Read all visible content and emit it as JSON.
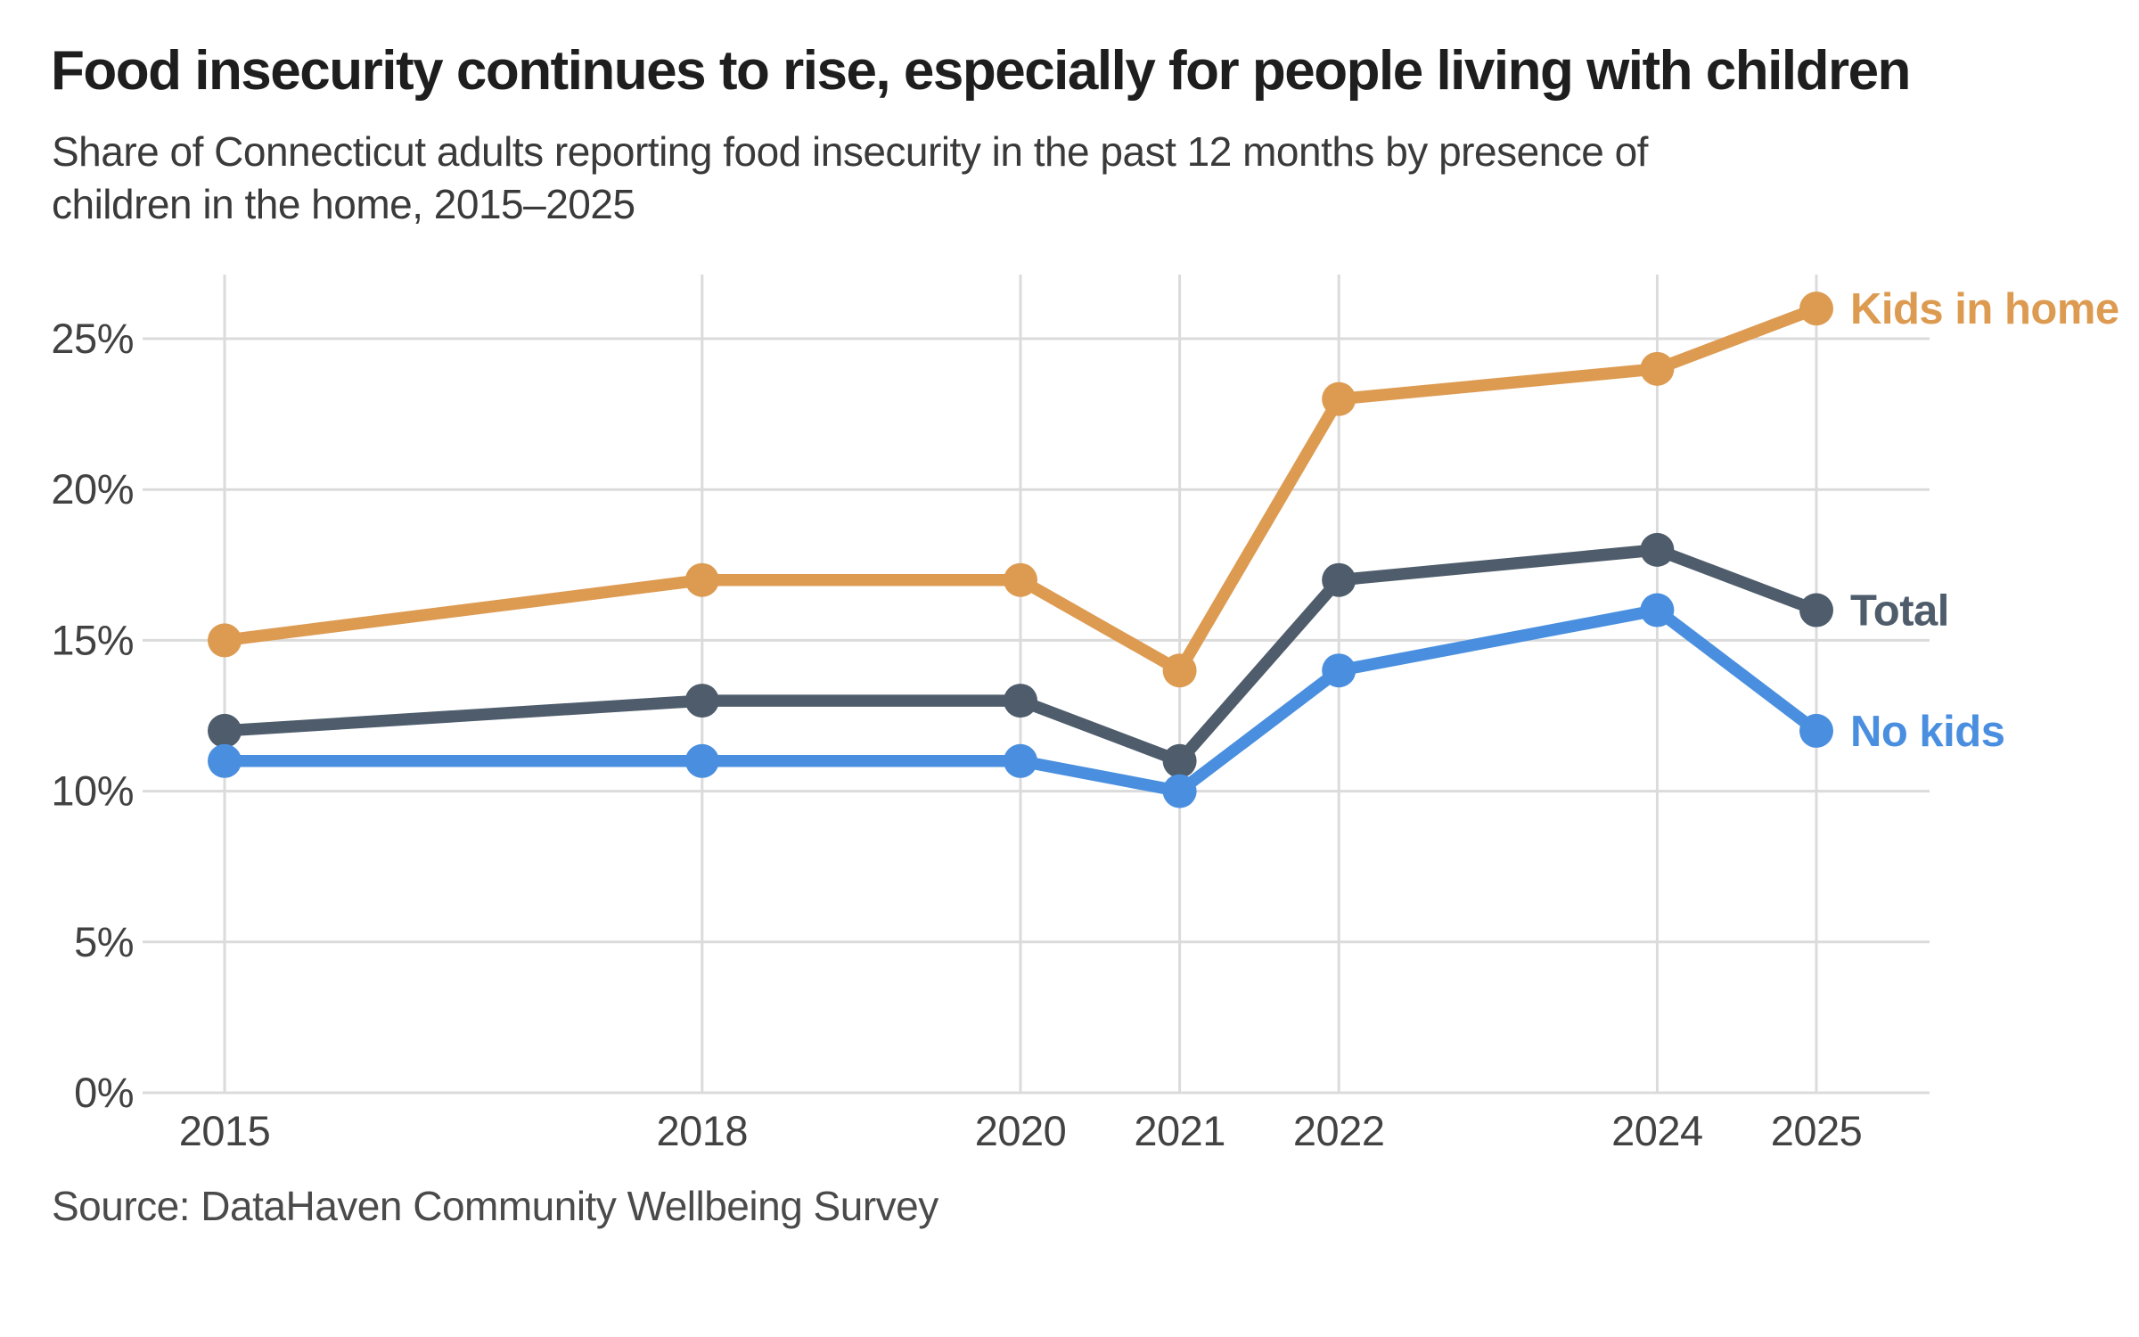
{
  "header": {
    "title": "Food insecurity continues to rise, especially for people living with children",
    "subtitle_lines": [
      "Share of Connecticut adults reporting food insecurity in the past 12 months by presence of",
      "children in the home, 2015–2025"
    ]
  },
  "source": {
    "label": "Source: DataHaven Community Wellbeing Survey"
  },
  "colors": {
    "kids_in_home": "#DD9B52",
    "total": "#4E5C6B",
    "no_kids": "#4A8FDF",
    "gridline": "#DBDBDB",
    "tick_label": "#424242",
    "title": "#1e1e1e",
    "subtitle": "#3a3a3a",
    "source": "#4a4a4a",
    "background": "#ffffff"
  },
  "chart_data": {
    "type": "line",
    "title": "Food insecurity continues to rise, especially for people living with children",
    "subtitle": "Share of Connecticut adults reporting food insecurity in the past 12 months by presence of children in the home, 2015–2025",
    "x": [
      2015,
      2018,
      2020,
      2021,
      2022,
      2024,
      2025
    ],
    "x_tick_labels": [
      "2015",
      "2018",
      "2020",
      "2021",
      "2022",
      "2024",
      "2025"
    ],
    "series": [
      {
        "name": "Kids in home",
        "color": "#DD9B52",
        "values": [
          15,
          17,
          17,
          14,
          23,
          24,
          26
        ]
      },
      {
        "name": "Total",
        "color": "#4E5C6B",
        "values": [
          12,
          13,
          13,
          11,
          17,
          18,
          16
        ]
      },
      {
        "name": "No kids",
        "color": "#4A8FDF",
        "values": [
          11,
          11,
          11,
          10,
          14,
          16,
          12
        ]
      }
    ],
    "y_ticks": [
      0,
      5,
      10,
      15,
      20,
      25
    ],
    "y_tick_labels": [
      "0%",
      "5%",
      "10%",
      "15%",
      "20%",
      "25%"
    ],
    "xlabel": "",
    "ylabel": "",
    "xlim": [
      2015,
      2025
    ],
    "ylim": [
      0,
      27.2
    ],
    "grid": true,
    "legend_position": "right-of-last-points",
    "unit": "percent"
  }
}
